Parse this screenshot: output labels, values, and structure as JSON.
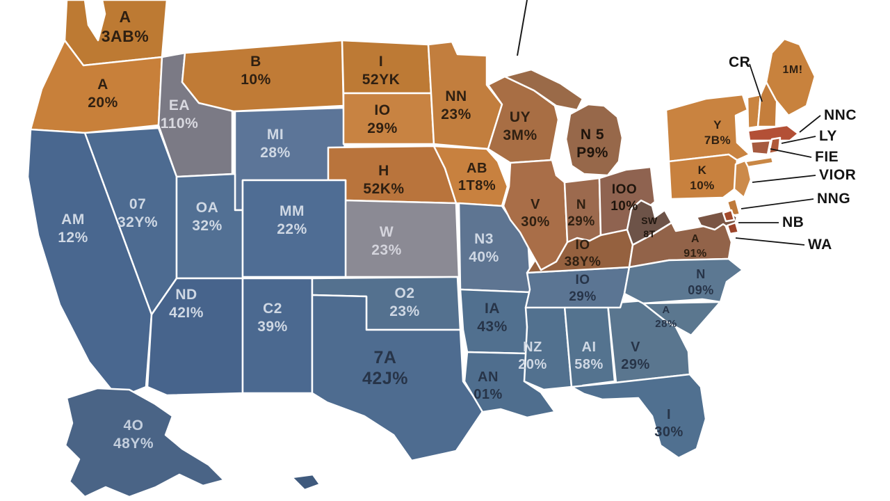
{
  "page": {
    "background": "#ffffff"
  },
  "map": {
    "type": "choropleth-usa",
    "stroke_color": "#ffffff",
    "callout_color": "#141414",
    "states": [
      {
        "id": "WA",
        "abbr": "A",
        "value": "3AB%",
        "fill": "#bd7a33",
        "text_color": "#2f2012"
      },
      {
        "id": "OR",
        "abbr": "A",
        "value": "20%",
        "fill": "#c8803a",
        "text_color": "#2f2012"
      },
      {
        "id": "ID",
        "abbr": "EA",
        "value": "110%",
        "fill": "#7b7a85",
        "text_color": "#d9d9e0"
      },
      {
        "id": "MT",
        "abbr": "B",
        "value": "10%",
        "fill": "#c07b36",
        "text_color": "#2f2012"
      },
      {
        "id": "WY",
        "abbr": "MI",
        "value": "28%",
        "fill": "#5c7598",
        "text_color": "#cfd8e4"
      },
      {
        "id": "ND",
        "abbr": "I",
        "value": "52YK",
        "fill": "#bd7a35",
        "text_color": "#2f2012"
      },
      {
        "id": "SD",
        "abbr": "IO",
        "value": "29%",
        "fill": "#c88342",
        "text_color": "#2f2012"
      },
      {
        "id": "MN",
        "abbr": "NN",
        "value": "23%",
        "fill": "#c27e3e",
        "text_color": "#2f2012"
      },
      {
        "id": "WI",
        "abbr": "UY",
        "value": "3M%",
        "fill": "#a86e44",
        "text_color": "#2f2012"
      },
      {
        "id": "MIUP",
        "abbr": "",
        "value": "",
        "fill": "#9a6a48",
        "text_color": ""
      },
      {
        "id": "MI",
        "abbr": "N 5",
        "value": "P9%",
        "fill": "#97684a",
        "text_color": "#1e140c"
      },
      {
        "id": "NE",
        "abbr": "H",
        "value": "52K%",
        "fill": "#b9743c",
        "text_color": "#2f2012"
      },
      {
        "id": "IA",
        "abbr": "AB",
        "value": "1T8%",
        "fill": "#c8813f",
        "text_color": "#2f2012"
      },
      {
        "id": "KS",
        "abbr": "W",
        "value": "23%",
        "fill": "#8b8a94",
        "text_color": "#d4d4dc"
      },
      {
        "id": "MO",
        "abbr": "N3",
        "value": "40%",
        "fill": "#5e7592",
        "text_color": "#cfd8e4"
      },
      {
        "id": "NV",
        "abbr": "07",
        "value": "32Y%",
        "fill": "#4d6b91",
        "text_color": "#cfd8e4"
      },
      {
        "id": "UT",
        "abbr": "OA",
        "value": "32%",
        "fill": "#527094",
        "text_color": "#cfd8e4"
      },
      {
        "id": "CO",
        "abbr": "MM",
        "value": "22%",
        "fill": "#4f6d94",
        "text_color": "#cfd8e4"
      },
      {
        "id": "CA",
        "abbr": "AM",
        "value": "12%",
        "fill": "#49678f",
        "text_color": "#cfd8e4"
      },
      {
        "id": "AZ",
        "abbr": "ND",
        "value": "42I%",
        "fill": "#47648c",
        "text_color": "#cfd8e4"
      },
      {
        "id": "NM",
        "abbr": "C2",
        "value": "39%",
        "fill": "#4b6990",
        "text_color": "#cfd8e4"
      },
      {
        "id": "OK",
        "abbr": "O2",
        "value": "23%",
        "fill": "#54718f",
        "text_color": "#cfd8e4"
      },
      {
        "id": "TX",
        "abbr": "7A",
        "value": "42J%",
        "fill": "#4e6c90",
        "text_color": "#273448"
      },
      {
        "id": "AR",
        "abbr": "IA",
        "value": "43%",
        "fill": "#51708f",
        "text_color": "#273448"
      },
      {
        "id": "LA",
        "abbr": "AN",
        "value": "01%",
        "fill": "#4f6e8e",
        "text_color": "#273448"
      },
      {
        "id": "MS",
        "abbr": "NZ",
        "value": "20%",
        "fill": "#52718f",
        "text_color": "#cfd8e4"
      },
      {
        "id": "AL",
        "abbr": "AI",
        "value": "58%",
        "fill": "#54738f",
        "text_color": "#cfd8e4"
      },
      {
        "id": "GA",
        "abbr": "V",
        "value": "29%",
        "fill": "#5a768f",
        "text_color": "#273448"
      },
      {
        "id": "FL",
        "abbr": "I",
        "value": "30%",
        "fill": "#507090",
        "text_color": "#273448"
      },
      {
        "id": "TN",
        "abbr": "IO",
        "value": "29%",
        "fill": "#5b7593",
        "text_color": "#273448"
      },
      {
        "id": "KY",
        "abbr": "IO",
        "value": "38Y%",
        "fill": "#95613f",
        "text_color": "#2f2012"
      },
      {
        "id": "IL",
        "abbr": "V",
        "value": "30%",
        "fill": "#a96e48",
        "text_color": "#2f2012"
      },
      {
        "id": "IN",
        "abbr": "N",
        "value": "29%",
        "fill": "#9c6a4e",
        "text_color": "#2f2012"
      },
      {
        "id": "OH",
        "abbr": "IOO",
        "value": "10%",
        "fill": "#8f6350",
        "text_color": "#1e140c"
      },
      {
        "id": "WV",
        "abbr": "SW",
        "value": "8T",
        "fill": "#6d5348",
        "text_color": "#201710"
      },
      {
        "id": "VA",
        "abbr": "A",
        "value": "91%",
        "fill": "#926349",
        "text_color": "#2f2012"
      },
      {
        "id": "NC",
        "abbr": "N",
        "value": "09%",
        "fill": "#5c7892",
        "text_color": "#273448"
      },
      {
        "id": "SC",
        "abbr": "A",
        "value": "28%",
        "fill": "#5b778f",
        "text_color": "#273448"
      },
      {
        "id": "NY",
        "abbr": "Y",
        "value": "7B%",
        "fill": "#c98340",
        "text_color": "#2f2012"
      },
      {
        "id": "PA",
        "abbr": "K",
        "value": "10%",
        "fill": "#c8813e",
        "text_color": "#2f2012"
      },
      {
        "id": "NJ",
        "abbr": "",
        "value": "",
        "fill": "#cc8a4a",
        "text_color": ""
      },
      {
        "id": "DE",
        "abbr": "",
        "value": "",
        "fill": "#bf7a3a",
        "text_color": ""
      },
      {
        "id": "MD",
        "abbr": "",
        "value": "",
        "fill": "#7a5544",
        "text_color": ""
      },
      {
        "id": "VT",
        "abbr": "",
        "value": "",
        "fill": "#c98440",
        "text_color": ""
      },
      {
        "id": "NH",
        "abbr": "",
        "value": "",
        "fill": "#c47e3c",
        "text_color": ""
      },
      {
        "id": "ME",
        "abbr": "1M!",
        "value": "",
        "fill": "#c8823d",
        "text_color": "#2f2012"
      },
      {
        "id": "MA",
        "abbr": "",
        "value": "",
        "fill": "#b35036",
        "text_color": ""
      },
      {
        "id": "CT",
        "abbr": "",
        "value": "",
        "fill": "#a65a40",
        "text_color": ""
      },
      {
        "id": "RI",
        "abbr": "",
        "value": "",
        "fill": "#b05a3a",
        "text_color": ""
      },
      {
        "id": "LI",
        "abbr": "",
        "value": "",
        "fill": "#c98745",
        "text_color": ""
      },
      {
        "id": "AK",
        "abbr": "4O",
        "value": "48Y%",
        "fill": "#4a6486",
        "text_color": "#c3cedd"
      },
      {
        "id": "ISL1",
        "abbr": "",
        "value": "",
        "fill": "#3f5a7d",
        "text_color": ""
      },
      {
        "id": "CHES1",
        "abbr": "",
        "value": "",
        "fill": "#a34a2c",
        "text_color": ""
      },
      {
        "id": "CHES2",
        "abbr": "",
        "value": "",
        "fill": "#9c442a",
        "text_color": ""
      }
    ],
    "callouts": [
      {
        "id": "c1",
        "text": "CR"
      },
      {
        "id": "c2",
        "text": "NNC"
      },
      {
        "id": "c3",
        "text": "LY"
      },
      {
        "id": "c4",
        "text": "FIE"
      },
      {
        "id": "c5",
        "text": "VIOR"
      },
      {
        "id": "c6",
        "text": "NNG"
      },
      {
        "id": "c7",
        "text": "NB"
      },
      {
        "id": "c8",
        "text": "WA"
      }
    ]
  }
}
